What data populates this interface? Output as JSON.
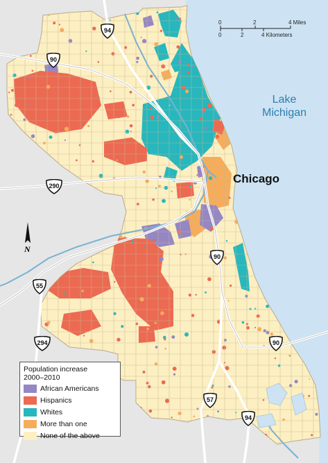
{
  "map": {
    "city": "Chicago",
    "lake": [
      "Lake",
      "Michigan"
    ],
    "north": "N",
    "scale": {
      "miles_ticks": [
        "0",
        "2",
        "4 Miles"
      ],
      "km_ticks": [
        "0",
        "2",
        "4 Kilometers"
      ]
    },
    "highways": [
      "90",
      "94",
      "290",
      "55",
      "90",
      "57",
      "94",
      "294",
      "90"
    ],
    "colors": {
      "lake": "#cde3f3",
      "land_outside": "#e6e6e6",
      "city_base": "#fcefc2",
      "african_americans": "#9586c4",
      "hispanics": "#ec6a52",
      "whites": "#27b7bd",
      "more_than_one": "#f5ad5c",
      "none": "#fcefc2",
      "road": "#ffffff",
      "river": "#78b2d2"
    }
  },
  "legend": {
    "title": [
      "Population increase",
      "2000–2010"
    ],
    "items": [
      {
        "label": "African Americans",
        "color": "#9586c4"
      },
      {
        "label": "Hispanics",
        "color": "#ec6a52"
      },
      {
        "label": "Whites",
        "color": "#27b7bd"
      },
      {
        "label": "More than one",
        "color": "#f5ad5c"
      },
      {
        "label": "None of the above",
        "color": "#fcefc2"
      }
    ]
  }
}
